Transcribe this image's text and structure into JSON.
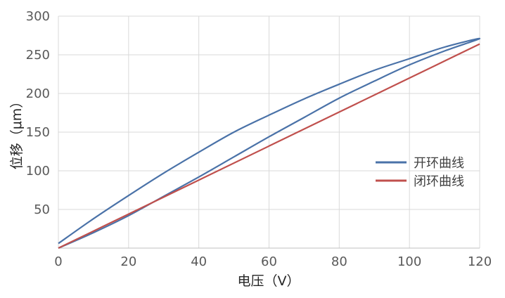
{
  "chart_data": {
    "type": "line",
    "xlabel": "电压（V）",
    "ylabel": "位移（μm）",
    "xlim": [
      0,
      120
    ],
    "ylim": [
      0,
      300
    ],
    "xticks": [
      0,
      20,
      40,
      60,
      80,
      100,
      120
    ],
    "yticks": [
      50,
      100,
      150,
      200,
      250,
      300
    ],
    "grid": true,
    "legend_position": "right",
    "series": [
      {
        "name": "开环曲线",
        "color": "#4a72a8",
        "x": [
          0,
          10,
          20,
          30,
          40,
          50,
          60,
          70,
          80,
          90,
          100,
          110,
          120,
          110,
          100,
          90,
          80,
          70,
          60,
          50,
          40,
          30,
          20,
          10,
          0
        ],
        "y": [
          0,
          20,
          42,
          67,
          92,
          118,
          144,
          169,
          194,
          216,
          237,
          255,
          271,
          260,
          245,
          230,
          212,
          193,
          172,
          150,
          124,
          97,
          68,
          38,
          6
        ]
      },
      {
        "name": "闭环曲线",
        "color": "#c0504d",
        "x": [
          0,
          20,
          40,
          60,
          80,
          100,
          120
        ],
        "y": [
          0,
          44,
          88,
          132,
          176,
          220,
          264
        ]
      }
    ]
  }
}
